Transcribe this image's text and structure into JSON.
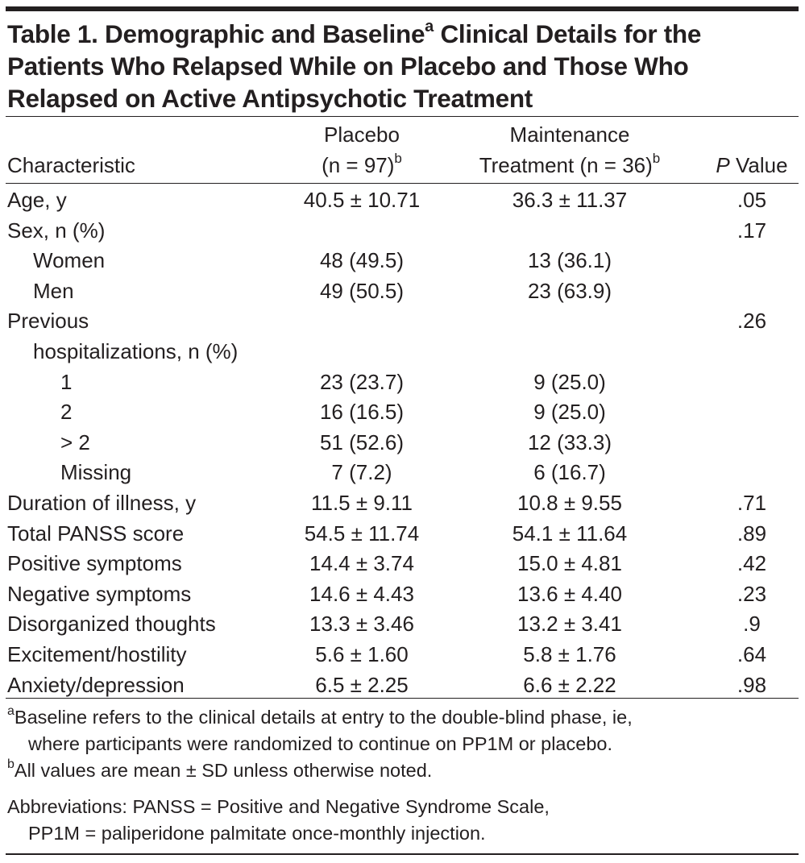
{
  "table": {
    "title_part1": "Table 1. Demographic and Baseline",
    "title_sup": "a",
    "title_part2": " Clinical Details for the",
    "title_line2": "Patients Who Relapsed While on Placebo and Those Who",
    "title_line3": "Relapsed on Active Antipsychotic Treatment",
    "headers": {
      "characteristic": "Characteristic",
      "placebo_line1": "Placebo",
      "placebo_line2": "(n = 97)",
      "placebo_sup": "b",
      "maintenance_line1": "Maintenance",
      "maintenance_line2": "Treatment (n = 36)",
      "maintenance_sup": "b",
      "pvalue_italic": "P",
      "pvalue_rest": " Value"
    },
    "rows": [
      {
        "characteristic": "Age, y",
        "indent": 0,
        "placebo": "40.5 ± 10.71",
        "maintenance": "36.3 ± 11.37",
        "p": ".05"
      },
      {
        "characteristic": "Sex, n (%)",
        "indent": 0,
        "placebo": "",
        "maintenance": "",
        "p": ".17"
      },
      {
        "characteristic": "Women",
        "indent": 1,
        "placebo": "48 (49.5)",
        "maintenance": "13 (36.1)",
        "p": ""
      },
      {
        "characteristic": "Men",
        "indent": 1,
        "placebo": "49 (50.5)",
        "maintenance": "23 (63.9)",
        "p": ""
      },
      {
        "characteristic": "Previous",
        "indent": 0,
        "placebo": "",
        "maintenance": "",
        "p": ".26"
      },
      {
        "characteristic": "hospitalizations, n (%)",
        "indent": 1,
        "placebo": "",
        "maintenance": "",
        "p": ""
      },
      {
        "characteristic": "1",
        "indent": 2,
        "placebo": "23 (23.7)",
        "maintenance": "9 (25.0)",
        "p": ""
      },
      {
        "characteristic": "2",
        "indent": 2,
        "placebo": "16 (16.5)",
        "maintenance": "9 (25.0)",
        "p": ""
      },
      {
        "characteristic": "> 2",
        "indent": 2,
        "placebo": "51 (52.6)",
        "maintenance": "12 (33.3)",
        "p": ""
      },
      {
        "characteristic": "Missing",
        "indent": 2,
        "placebo": "7 (7.2)",
        "maintenance": "6 (16.7)",
        "p": ""
      },
      {
        "characteristic": "Duration of illness, y",
        "indent": 0,
        "placebo": "11.5 ± 9.11",
        "maintenance": "10.8 ± 9.55",
        "p": ".71"
      },
      {
        "characteristic": "Total PANSS score",
        "indent": 0,
        "placebo": "54.5 ± 11.74",
        "maintenance": "54.1 ± 11.64",
        "p": ".89"
      },
      {
        "characteristic": "Positive symptoms",
        "indent": 0,
        "placebo": "14.4 ± 3.74",
        "maintenance": "15.0 ± 4.81",
        "p": ".42"
      },
      {
        "characteristic": "Negative symptoms",
        "indent": 0,
        "placebo": "14.6 ± 4.43",
        "maintenance": "13.6 ± 4.40",
        "p": ".23"
      },
      {
        "characteristic": "Disorganized thoughts",
        "indent": 0,
        "placebo": "13.3 ± 3.46",
        "maintenance": "13.2 ± 3.41",
        "p": ".9"
      },
      {
        "characteristic": "Excitement/hostility",
        "indent": 0,
        "placebo": "5.6 ± 1.60",
        "maintenance": "5.8 ± 1.76",
        "p": ".64"
      },
      {
        "characteristic": "Anxiety/depression",
        "indent": 0,
        "placebo": "6.5 ± 2.25",
        "maintenance": "6.6 ± 2.22",
        "p": ".98"
      }
    ],
    "footnotes": {
      "a_marker": "a",
      "a_line1": "Baseline refers to the clinical details at entry to the double-blind phase, ie,",
      "a_line2": "where participants were randomized to continue on PP1M or placebo.",
      "b_marker": "b",
      "b_line1": "All values are mean ± SD unless otherwise noted.",
      "abbrev_line1": "Abbreviations: PANSS = Positive and Negative Syndrome Scale,",
      "abbrev_line2": "PP1M = paliperidone palmitate once-monthly injection."
    }
  }
}
